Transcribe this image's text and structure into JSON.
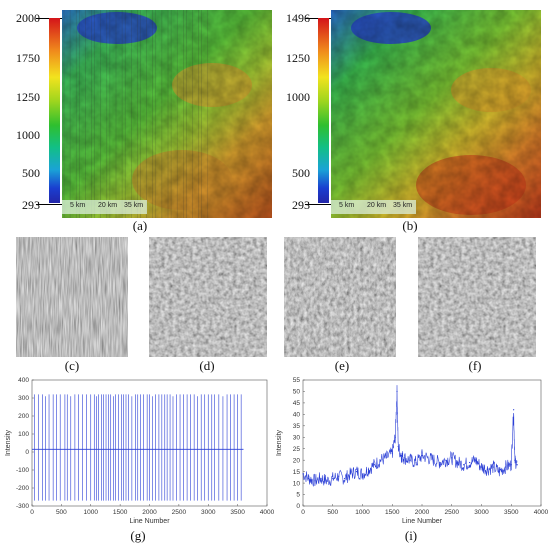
{
  "panels": {
    "a": {
      "caption": "(a)",
      "colorbar_ticks": [
        "2000",
        "1750",
        "1250",
        "1000",
        "500",
        "293"
      ],
      "scale_labels": [
        "5 km",
        "20 km",
        "35 km"
      ]
    },
    "b": {
      "caption": "(b)",
      "colorbar_ticks": [
        "1496",
        "1250",
        "1000",
        "500",
        "293"
      ],
      "scale_labels": [
        "5 km",
        "20 km",
        "35 km"
      ]
    },
    "c": {
      "caption": "(c)"
    },
    "d": {
      "caption": "(d)"
    },
    "e": {
      "caption": "(e)"
    },
    "f": {
      "caption": "(f)"
    },
    "g": {
      "caption": "(g)"
    },
    "i": {
      "caption": "(i)"
    }
  },
  "chart_data": [
    {
      "type": "line",
      "panel": "g",
      "xlabel": "Line Number",
      "ylabel": "Intensity",
      "xlim": [
        0,
        4000
      ],
      "ylim": [
        -300,
        400
      ],
      "xticks": [
        0,
        500,
        1000,
        1500,
        2000,
        2500,
        3000,
        3500,
        4000
      ],
      "yticks": [
        -300,
        -200,
        -100,
        0,
        100,
        200,
        300,
        400
      ],
      "series": [
        {
          "color": "#2b3fd6",
          "baseline": 15,
          "x_range": [
            0,
            3600
          ],
          "spike_top": 320,
          "spike_bottom": -270,
          "spike_x": [
            40,
            110,
            180,
            230,
            290,
            360,
            420,
            480,
            560,
            600,
            660,
            730,
            790,
            860,
            930,
            1000,
            1060,
            1100,
            1130,
            1180,
            1220,
            1260,
            1300,
            1340,
            1390,
            1420,
            1470,
            1520,
            1560,
            1600,
            1640,
            1700,
            1760,
            1800,
            1850,
            1900,
            1960,
            2000,
            2050,
            2100,
            2160,
            2210,
            2260,
            2300,
            2350,
            2400,
            2460,
            2520,
            2580,
            2640,
            2700,
            2760,
            2820,
            2880,
            2940,
            3000,
            3060,
            3110,
            3180,
            3250,
            3320,
            3380,
            3440,
            3500,
            3560
          ]
        }
      ]
    },
    {
      "type": "line",
      "panel": "i",
      "xlabel": "Line Number",
      "ylabel": "Intensity",
      "xlim": [
        0,
        4000
      ],
      "ylim": [
        0,
        55
      ],
      "xticks": [
        0,
        500,
        1000,
        1500,
        2000,
        2500,
        3000,
        3500,
        4000
      ],
      "yticks": [
        0,
        5,
        10,
        15,
        20,
        25,
        30,
        35,
        40,
        45,
        50,
        55
      ],
      "series": [
        {
          "color": "#2b3fd6",
          "x": [
            0,
            100,
            200,
            300,
            400,
            500,
            600,
            700,
            800,
            900,
            1000,
            1100,
            1200,
            1300,
            1400,
            1500,
            1550,
            1580,
            1600,
            1650,
            1700,
            1800,
            1900,
            2000,
            2100,
            2200,
            2300,
            2400,
            2500,
            2600,
            2700,
            2800,
            2900,
            3000,
            3100,
            3200,
            3300,
            3400,
            3500,
            3540,
            3560,
            3600
          ],
          "y": [
            14,
            12,
            11,
            12,
            11,
            12,
            13,
            12,
            14,
            15,
            14,
            16,
            18,
            20,
            21,
            23,
            30,
            50,
            26,
            22,
            21,
            20,
            19,
            22,
            21,
            20,
            19,
            20,
            21,
            19,
            18,
            19,
            20,
            17,
            16,
            17,
            15,
            17,
            18,
            42,
            20,
            18
          ]
        }
      ]
    }
  ]
}
